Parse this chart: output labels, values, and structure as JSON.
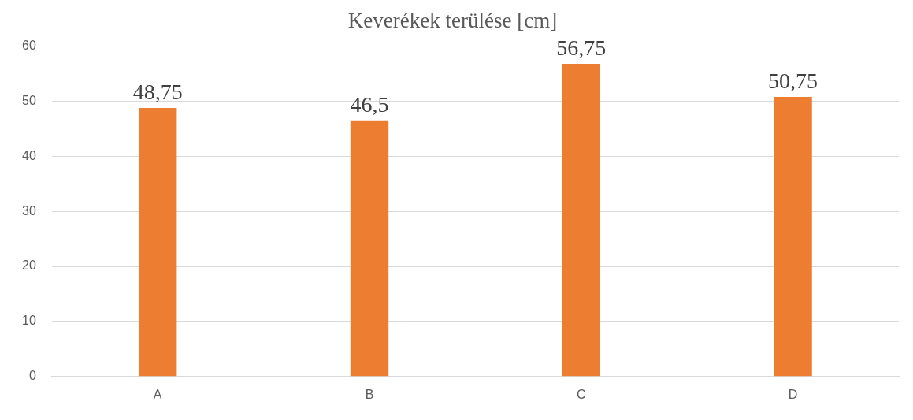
{
  "chart_data": {
    "type": "bar",
    "title": "Keverékek terülése [cm]",
    "categories": [
      "A",
      "B",
      "C",
      "D"
    ],
    "values": [
      48.75,
      46.5,
      56.75,
      50.75
    ],
    "value_labels": [
      "48,75",
      "46,5",
      "56,75",
      "50,75"
    ],
    "color": "#ed7d31",
    "ylim": [
      0,
      60
    ],
    "yticks": [
      0,
      10,
      20,
      30,
      40,
      50,
      60
    ],
    "grid": "y",
    "legend": false
  }
}
